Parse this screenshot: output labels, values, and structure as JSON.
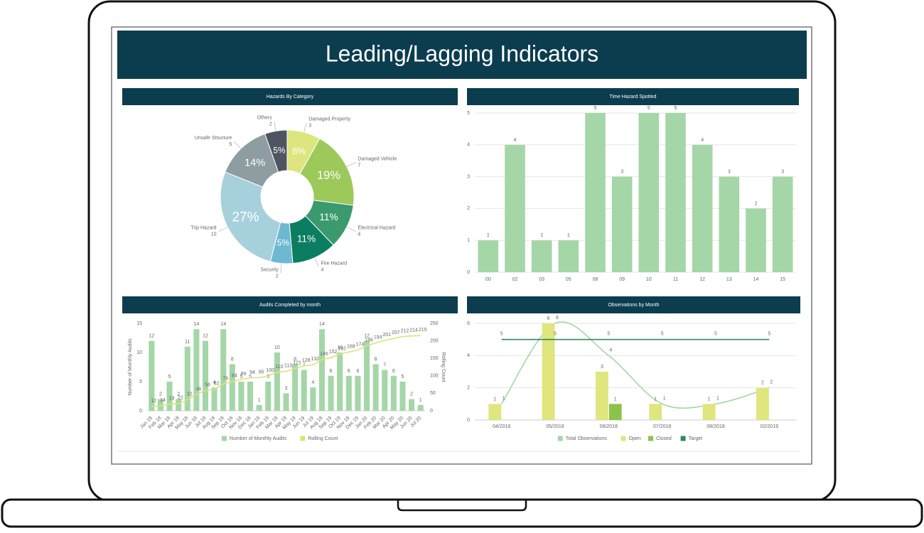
{
  "header": {
    "title": "Leading/Lagging Indicators"
  },
  "chart_data": [
    {
      "type": "pie",
      "title": "Hazards By Category",
      "categories": [
        "Damaged Property",
        "Damaged Vehicle",
        "Electrical Hazard",
        "Fire Hazard",
        "Security",
        "Trip Hazard",
        "Unsafe Structure",
        "Others"
      ],
      "values": [
        3,
        7,
        4,
        4,
        2,
        10,
        5,
        2
      ],
      "percent_labels": [
        "8%",
        "19%",
        "11%",
        "11%",
        "5%",
        "27%",
        "14%",
        "5%"
      ],
      "colors": [
        "#dde67e",
        "#9cc95a",
        "#3a9a6e",
        "#0b7e62",
        "#6fb8d2",
        "#a6d1dc",
        "#8d9da1",
        "#4f5463"
      ]
    },
    {
      "type": "bar",
      "title": "Time Hazard Spotted",
      "categories": [
        "00",
        "02",
        "03",
        "05",
        "08",
        "09",
        "10",
        "11",
        "12",
        "13",
        "14",
        "15"
      ],
      "values": [
        1,
        4,
        1,
        1,
        5,
        3,
        5,
        5,
        4,
        3,
        2,
        3
      ],
      "color": "#a5d6a7",
      "ylim": [
        0,
        5
      ],
      "yticks": [
        0,
        1,
        2,
        3,
        4,
        5
      ],
      "grid": true
    },
    {
      "type": "combo",
      "title": "Audits Completed by month",
      "categories": [
        "Jan 18",
        "Feb 18",
        "Mar 18",
        "Apr 18",
        "May 18",
        "Jun 18",
        "Jul 18",
        "Aug 18",
        "Sep 18",
        "Oct 18",
        "Nov 18",
        "Dec 18",
        "Jan 19",
        "Feb 19",
        "Mar 19",
        "Apr 19",
        "May 19",
        "Jun 19",
        "Jul 19",
        "Aug 19",
        "Sep 19",
        "Oct 19",
        "Nov 19",
        "Dec 19",
        "Jan 20",
        "Feb 20",
        "Mar 20",
        "Apr 20",
        "May 20",
        "Jun 20",
        "Jul 20"
      ],
      "series": [
        {
          "name": "Number of Monthly Audits",
          "kind": "bar",
          "color": "#a5d6a7",
          "values": [
            12,
            2,
            5,
            2,
            11,
            14,
            12,
            4,
            14,
            8,
            5,
            5,
            1,
            5,
            10,
            3,
            8,
            7,
            4,
            14,
            6,
            10,
            6,
            6,
            12,
            8,
            7,
            6,
            5,
            2,
            1
          ]
        },
        {
          "name": "Rolling Count",
          "kind": "line",
          "axis": "y2",
          "color": "#dbe37b",
          "values": [
            12,
            14,
            19,
            21,
            32,
            46,
            58,
            62,
            76,
            84,
            89,
            94,
            95,
            100,
            110,
            113,
            121,
            128,
            132,
            146,
            152,
            162,
            168,
            174,
            186,
            194,
            201,
            207,
            212,
            214,
            215
          ]
        }
      ],
      "ylabel": "Number of Monthly Audits",
      "y2label": "Rolling Count",
      "ylim": [
        0,
        15
      ],
      "yticks": [
        0,
        5,
        10,
        15
      ],
      "y2lim": [
        0,
        250
      ],
      "y2ticks": [
        0,
        50,
        100,
        150,
        200,
        250
      ],
      "grid": false,
      "rotate_x_labels": true
    },
    {
      "type": "combo",
      "title": "Observations by Month",
      "categories": [
        "04/2018",
        "05/2018",
        "06/2018",
        "07/2018",
        "08/2018",
        "02/2019"
      ],
      "series": [
        {
          "name": "Total Observations",
          "kind": "line",
          "color": "#a5d6a7",
          "values": [
            1,
            6,
            4,
            1,
            1,
            2
          ]
        },
        {
          "name": "Open",
          "kind": "bar",
          "color": "#e0e57d",
          "values": [
            1,
            6,
            3,
            1,
            1,
            2
          ]
        },
        {
          "name": "Closed",
          "kind": "bar",
          "color": "#8bc34a",
          "values": [
            null,
            null,
            1,
            null,
            null,
            null
          ]
        },
        {
          "name": "Target",
          "kind": "line",
          "color": "#2e8c5a",
          "straight": true,
          "values": [
            5,
            5,
            5,
            5,
            5,
            5
          ]
        }
      ],
      "ylim": [
        0,
        6
      ],
      "yticks": [
        0,
        2,
        4,
        6
      ],
      "grid": true,
      "rotate_x_labels": false
    }
  ]
}
